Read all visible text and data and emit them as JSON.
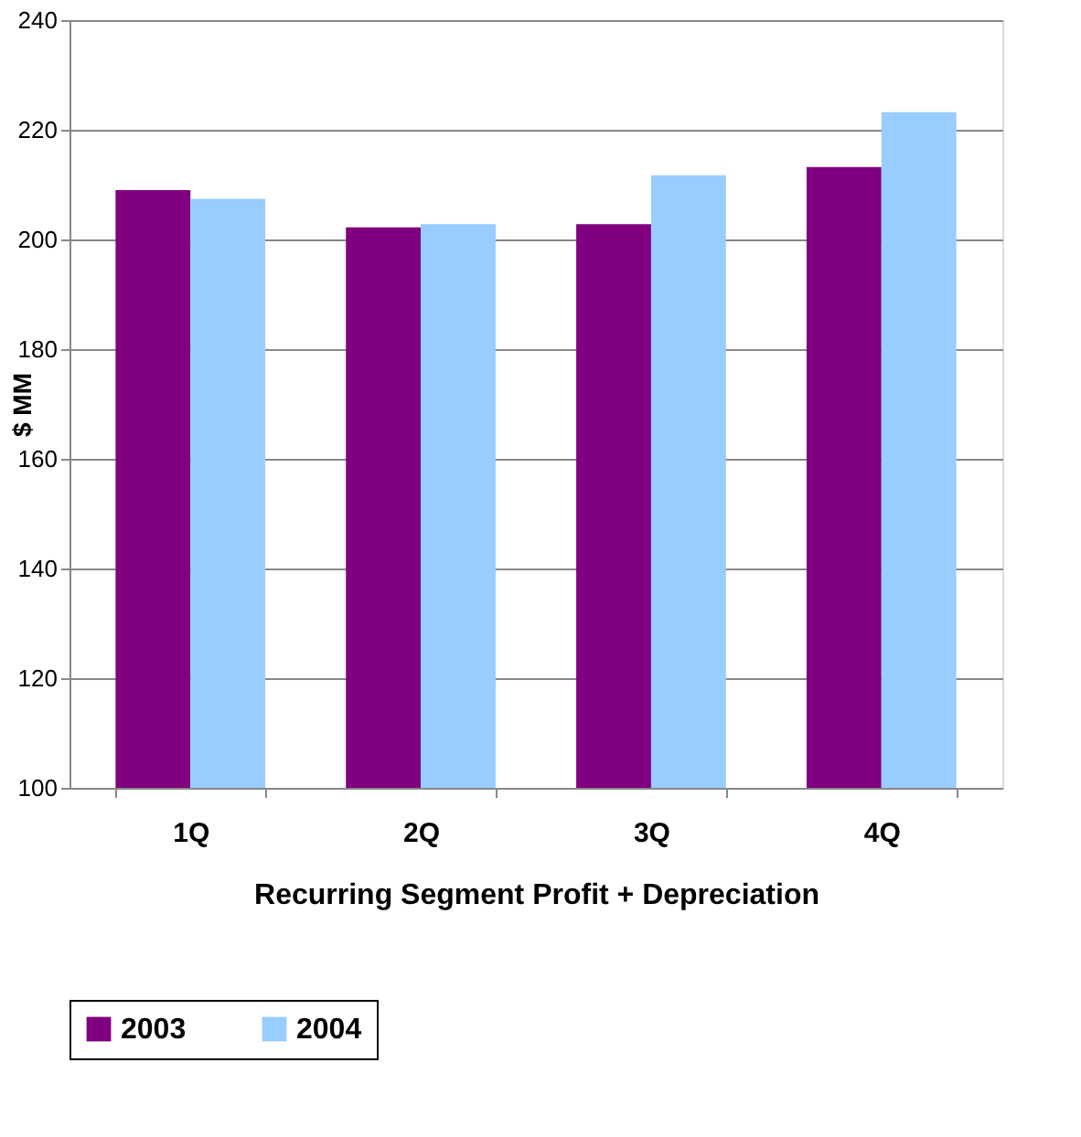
{
  "chart_data": {
    "type": "bar",
    "xlabel": "Recurring Segment Profit + Depreciation",
    "ylabel": "$ MM",
    "categories": [
      "1Q",
      "2Q",
      "3Q",
      "4Q"
    ],
    "series": [
      {
        "name": "2003",
        "color": "#800080",
        "values": [
          209.0,
          202.2,
          202.8,
          213.2
        ]
      },
      {
        "name": "2004",
        "color": "#99ccff",
        "values": [
          207.4,
          202.8,
          211.7,
          223.2
        ]
      }
    ],
    "ylim": [
      100,
      240
    ],
    "yticks": [
      100,
      120,
      140,
      160,
      180,
      200,
      220,
      240
    ],
    "grid": "y",
    "legend": "bottom"
  }
}
